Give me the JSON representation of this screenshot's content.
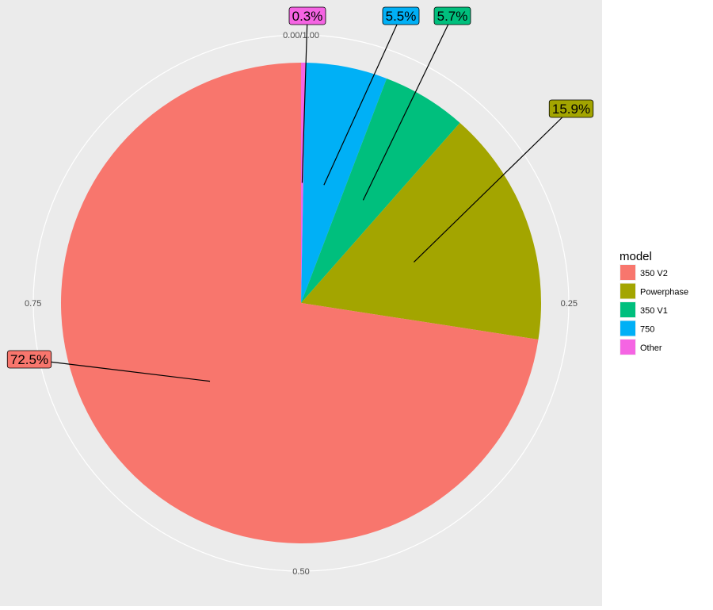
{
  "chart_data": {
    "type": "pie",
    "legend_title": "model",
    "legend_position": "right",
    "grid": true,
    "start_angle_label": "0.00/1.00",
    "axis_ticks": [
      {
        "value": 0.25,
        "label": "0.25"
      },
      {
        "value": 0.5,
        "label": "0.50"
      },
      {
        "value": 0.75,
        "label": "0.75"
      }
    ],
    "slices": [
      {
        "name": "Other",
        "value": 0.3,
        "label": "0.3%",
        "color": "#F564E3"
      },
      {
        "name": "750",
        "value": 5.5,
        "label": "5.5%",
        "color": "#00B0F6"
      },
      {
        "name": "350 V1",
        "value": 5.7,
        "label": "5.7%",
        "color": "#00BF7D"
      },
      {
        "name": "Powerphase",
        "value": 15.9,
        "label": "15.9%",
        "color": "#A3A500"
      },
      {
        "name": "350 V2",
        "value": 72.5,
        "label": "72.5%",
        "color": "#F8766D"
      }
    ],
    "legend_order": [
      "350 V2",
      "Powerphase",
      "350 V1",
      "750",
      "Other"
    ]
  },
  "colors": {
    "panel_background": "#EBEBEB",
    "grid_line": "#FFFFFF",
    "label_border": "#000000"
  }
}
